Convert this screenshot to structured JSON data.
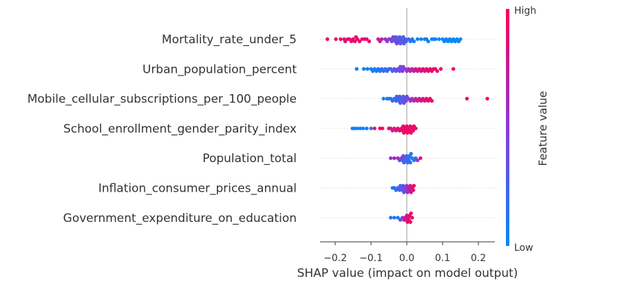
{
  "chart_data": {
    "type": "scatter",
    "subtype": "shap-beeswarm",
    "xlabel": "SHAP value (impact on model output)",
    "x_ticks": [
      -0.2,
      -0.1,
      0.0,
      0.1,
      0.2
    ],
    "x_tick_labels": [
      "−0.2",
      "−0.1",
      "0.0",
      "0.1",
      "0.2"
    ],
    "xlim": [
      -0.24,
      0.245
    ],
    "colorbar": {
      "label": "Feature value",
      "high": "High",
      "low": "Low"
    },
    "colors": {
      "low": "#008bfb",
      "high": "#ff0052",
      "zero_line": "#999999",
      "grid": "#cccccc",
      "text": "#333333"
    },
    "features": [
      {
        "name": "Mortality_rate_under_5",
        "points": [
          [
            -0.222,
            0.95
          ],
          [
            -0.198,
            0.9
          ],
          [
            -0.185,
            0.93
          ],
          [
            -0.175,
            0.95
          ],
          [
            -0.172,
            0.85
          ],
          [
            -0.165,
            0.9
          ],
          [
            -0.16,
            0.88
          ],
          [
            -0.155,
            0.92
          ],
          [
            -0.15,
            0.93
          ],
          [
            -0.145,
            0.87
          ],
          [
            -0.142,
            0.9
          ],
          [
            -0.138,
            0.95
          ],
          [
            -0.132,
            0.92
          ],
          [
            -0.125,
            0.85
          ],
          [
            -0.118,
            0.9
          ],
          [
            -0.112,
            0.93
          ],
          [
            -0.105,
            0.88
          ],
          [
            -0.08,
            0.7
          ],
          [
            -0.075,
            0.78
          ],
          [
            -0.07,
            0.72
          ],
          [
            -0.06,
            0.6
          ],
          [
            -0.055,
            0.5
          ],
          [
            -0.05,
            0.55
          ],
          [
            -0.045,
            0.45
          ],
          [
            -0.042,
            0.4
          ],
          [
            -0.038,
            0.5
          ],
          [
            -0.035,
            0.35
          ],
          [
            -0.032,
            0.4
          ],
          [
            -0.03,
            0.3
          ],
          [
            -0.028,
            0.45
          ],
          [
            -0.025,
            0.3
          ],
          [
            -0.022,
            0.35
          ],
          [
            -0.02,
            0.25
          ],
          [
            -0.018,
            0.3
          ],
          [
            -0.015,
            0.28
          ],
          [
            -0.012,
            0.3
          ],
          [
            -0.01,
            0.22
          ],
          [
            -0.008,
            0.3
          ],
          [
            -0.005,
            0.35
          ],
          [
            -0.002,
            0.3
          ],
          [
            0.005,
            0.15
          ],
          [
            0.01,
            0.12
          ],
          [
            0.015,
            0.1
          ],
          [
            0.02,
            0.08
          ],
          [
            0.03,
            0.1
          ],
          [
            0.04,
            0.05
          ],
          [
            0.05,
            0.08
          ],
          [
            0.055,
            0.06
          ],
          [
            0.06,
            0.04
          ],
          [
            0.07,
            0.05
          ],
          [
            0.075,
            0.03
          ],
          [
            0.08,
            0.06
          ],
          [
            0.09,
            0.04
          ],
          [
            0.1,
            0.03
          ],
          [
            0.105,
            0.05
          ],
          [
            0.11,
            0.04
          ],
          [
            0.115,
            0.02
          ],
          [
            0.12,
            0.03
          ],
          [
            0.125,
            0.04
          ],
          [
            0.13,
            0.02
          ],
          [
            0.135,
            0.03
          ],
          [
            0.14,
            0.02
          ],
          [
            0.145,
            0.03
          ],
          [
            0.15,
            0.02
          ]
        ]
      },
      {
        "name": "Urban_population_percent",
        "points": [
          [
            -0.14,
            0.05
          ],
          [
            -0.12,
            0.1
          ],
          [
            -0.11,
            0.08
          ],
          [
            -0.1,
            0.06
          ],
          [
            -0.095,
            0.12
          ],
          [
            -0.09,
            0.1
          ],
          [
            -0.085,
            0.08
          ],
          [
            -0.08,
            0.15
          ],
          [
            -0.075,
            0.1
          ],
          [
            -0.07,
            0.2
          ],
          [
            -0.065,
            0.15
          ],
          [
            -0.06,
            0.2
          ],
          [
            -0.055,
            0.25
          ],
          [
            -0.05,
            0.2
          ],
          [
            -0.045,
            0.3
          ],
          [
            -0.04,
            0.25
          ],
          [
            -0.035,
            0.35
          ],
          [
            -0.03,
            0.3
          ],
          [
            -0.025,
            0.4
          ],
          [
            -0.02,
            0.35
          ],
          [
            -0.018,
            0.45
          ],
          [
            -0.015,
            0.4
          ],
          [
            -0.012,
            0.5
          ],
          [
            -0.01,
            0.45
          ],
          [
            -0.005,
            0.55
          ],
          [
            0.0,
            0.5
          ],
          [
            0.005,
            0.6
          ],
          [
            0.01,
            0.65
          ],
          [
            0.015,
            0.7
          ],
          [
            0.02,
            0.75
          ],
          [
            0.025,
            0.8
          ],
          [
            0.03,
            0.78
          ],
          [
            0.035,
            0.82
          ],
          [
            0.04,
            0.85
          ],
          [
            0.045,
            0.88
          ],
          [
            0.05,
            0.85
          ],
          [
            0.055,
            0.9
          ],
          [
            0.06,
            0.88
          ],
          [
            0.065,
            0.92
          ],
          [
            0.07,
            0.9
          ],
          [
            0.075,
            0.93
          ],
          [
            0.08,
            0.95
          ],
          [
            0.085,
            0.9
          ],
          [
            0.095,
            0.95
          ],
          [
            0.13,
            0.97
          ]
        ]
      },
      {
        "name": "Mobile_cellular_subscriptions_per_100_people",
        "points": [
          [
            -0.065,
            0.1
          ],
          [
            -0.055,
            0.15
          ],
          [
            -0.05,
            0.12
          ],
          [
            -0.045,
            0.1
          ],
          [
            -0.04,
            0.2
          ],
          [
            -0.035,
            0.15
          ],
          [
            -0.03,
            0.2
          ],
          [
            -0.028,
            0.25
          ],
          [
            -0.025,
            0.2
          ],
          [
            -0.022,
            0.25
          ],
          [
            -0.02,
            0.3
          ],
          [
            -0.018,
            0.25
          ],
          [
            -0.015,
            0.3
          ],
          [
            -0.012,
            0.35
          ],
          [
            -0.01,
            0.3
          ],
          [
            -0.008,
            0.4
          ],
          [
            -0.005,
            0.35
          ],
          [
            -0.002,
            0.45
          ],
          [
            0.0,
            0.4
          ],
          [
            0.005,
            0.5
          ],
          [
            0.01,
            0.55
          ],
          [
            0.015,
            0.6
          ],
          [
            0.02,
            0.65
          ],
          [
            0.025,
            0.7
          ],
          [
            0.03,
            0.75
          ],
          [
            0.035,
            0.78
          ],
          [
            0.04,
            0.8
          ],
          [
            0.045,
            0.82
          ],
          [
            0.05,
            0.85
          ],
          [
            0.055,
            0.88
          ],
          [
            0.06,
            0.9
          ],
          [
            0.065,
            0.92
          ],
          [
            0.07,
            0.95
          ],
          [
            0.168,
            0.97
          ],
          [
            0.225,
            0.98
          ]
        ]
      },
      {
        "name": "School_enrollment_gender_parity_index",
        "points": [
          [
            -0.152,
            0.05
          ],
          [
            -0.145,
            0.08
          ],
          [
            -0.138,
            0.05
          ],
          [
            -0.13,
            0.06
          ],
          [
            -0.122,
            0.08
          ],
          [
            -0.112,
            0.1
          ],
          [
            -0.1,
            0.2
          ],
          [
            -0.09,
            0.9
          ],
          [
            -0.075,
            0.95
          ],
          [
            -0.068,
            0.9
          ],
          [
            -0.05,
            0.9
          ],
          [
            -0.045,
            0.85
          ],
          [
            -0.04,
            0.8
          ],
          [
            -0.035,
            0.75
          ],
          [
            -0.03,
            0.85
          ],
          [
            -0.025,
            0.9
          ],
          [
            -0.02,
            0.85
          ],
          [
            -0.015,
            0.9
          ],
          [
            -0.012,
            0.95
          ],
          [
            -0.01,
            0.92
          ],
          [
            -0.008,
            0.88
          ],
          [
            -0.005,
            0.95
          ],
          [
            -0.002,
            0.9
          ],
          [
            0.0,
            0.92
          ],
          [
            0.002,
            0.95
          ],
          [
            0.005,
            0.9
          ],
          [
            0.008,
            0.93
          ],
          [
            0.01,
            0.88
          ],
          [
            0.012,
            0.92
          ],
          [
            0.015,
            0.95
          ],
          [
            0.018,
            0.9
          ],
          [
            0.02,
            0.93
          ],
          [
            0.025,
            0.9
          ]
        ]
      },
      {
        "name": "Population_total",
        "points": [
          [
            -0.045,
            0.5
          ],
          [
            -0.035,
            0.7
          ],
          [
            -0.025,
            0.6
          ],
          [
            -0.02,
            0.4
          ],
          [
            -0.015,
            0.5
          ],
          [
            -0.012,
            0.3
          ],
          [
            -0.01,
            0.4
          ],
          [
            -0.008,
            0.2
          ],
          [
            -0.005,
            0.3
          ],
          [
            -0.003,
            0.2
          ],
          [
            0.0,
            0.25
          ],
          [
            0.002,
            0.2
          ],
          [
            0.004,
            0.15
          ],
          [
            0.006,
            0.2
          ],
          [
            0.008,
            0.1
          ],
          [
            0.01,
            0.15
          ],
          [
            0.012,
            0.1
          ],
          [
            0.015,
            0.12
          ],
          [
            0.02,
            0.15
          ],
          [
            0.025,
            0.2
          ],
          [
            0.03,
            0.5
          ],
          [
            0.038,
            0.9
          ]
        ]
      },
      {
        "name": "Inflation_consumer_prices_annual",
        "points": [
          [
            -0.04,
            0.1
          ],
          [
            -0.035,
            0.15
          ],
          [
            -0.03,
            0.2
          ],
          [
            -0.025,
            0.25
          ],
          [
            -0.02,
            0.3
          ],
          [
            -0.018,
            0.2
          ],
          [
            -0.015,
            0.35
          ],
          [
            -0.012,
            0.3
          ],
          [
            -0.01,
            0.4
          ],
          [
            -0.008,
            0.35
          ],
          [
            -0.005,
            0.45
          ],
          [
            -0.002,
            0.5
          ],
          [
            0.0,
            0.55
          ],
          [
            0.002,
            0.6
          ],
          [
            0.005,
            0.7
          ],
          [
            0.008,
            0.75
          ],
          [
            0.01,
            0.8
          ],
          [
            0.012,
            0.85
          ],
          [
            0.015,
            0.9
          ],
          [
            0.018,
            0.88
          ],
          [
            0.02,
            0.92
          ]
        ]
      },
      {
        "name": "Government_expenditure_on_education",
        "points": [
          [
            -0.045,
            0.1
          ],
          [
            -0.035,
            0.15
          ],
          [
            -0.025,
            0.1
          ],
          [
            -0.018,
            0.3
          ],
          [
            -0.012,
            0.5
          ],
          [
            -0.008,
            0.6
          ],
          [
            -0.005,
            0.7
          ],
          [
            -0.003,
            0.8
          ],
          [
            0.0,
            0.85
          ],
          [
            0.002,
            0.9
          ],
          [
            0.004,
            0.85
          ],
          [
            0.006,
            0.9
          ],
          [
            0.008,
            0.92
          ],
          [
            0.01,
            0.95
          ],
          [
            0.012,
            0.9
          ],
          [
            0.015,
            0.93
          ]
        ]
      }
    ]
  }
}
